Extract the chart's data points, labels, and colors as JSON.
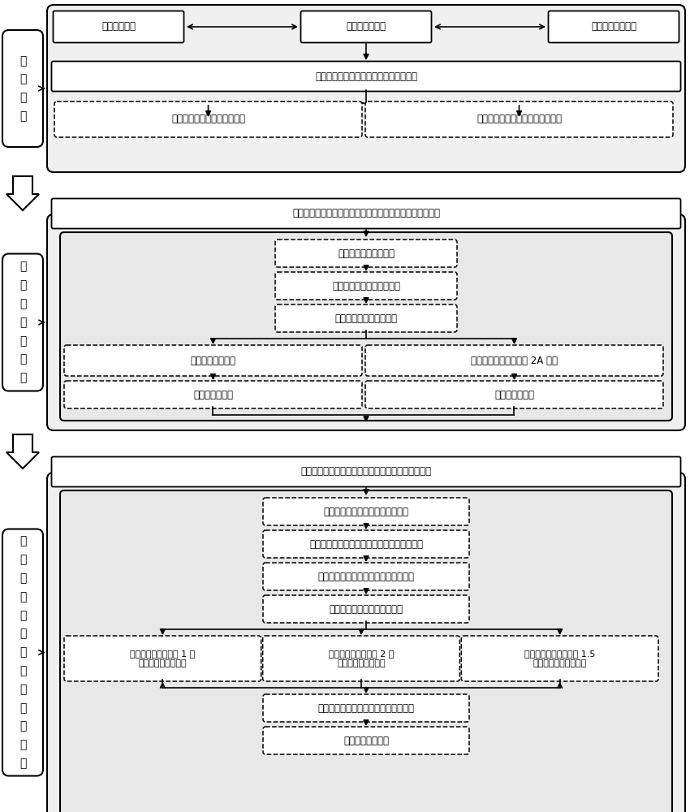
{
  "bg_color": "#ffffff",
  "text_color": "#000000",
  "section1_label": "制\n定\n方\n案",
  "section2_label": "特\n征\n污\n染\n物\n筛\n选",
  "section3_label": "目\n标\n特\n征\n污\n染\n物\n暴\n露\n区\n域\n划\n分",
  "top_boxes": [
    "基础资料收集",
    "预调查结果分析",
    "技术支持条件分析"
  ],
  "s1_main_box": "编制特征污染物筛选及暴露区域划分方案",
  "s1_dashed_left": "充实特征污染物筛选基础数据",
  "s1_dashed_right": "目标特征污染物人群暴露区域划分",
  "s2_main_box": "依据流域水体特征污染物筛选技术规定草案筛选特征污染物",
  "s2_d1": "第一阶段致癌等级筛选",
  "s2_d2": "第二阶段因子综合评分筛选",
  "s2_d3": "污染物因子综合评分计算",
  "s2_d4_left": "存在环境介质超标",
  "s2_d4_right": "检出率较高，致癌等级 2A 以上",
  "s2_d5_left": "核心特征污染物",
  "s2_d5_right": "扩展特征污染物",
  "s3_main_box": "依据特征污染物筛选结果研究人群暴露区域划分技术",
  "s3_d1": "确定暴露区域划分目标特征污染物",
  "s3_d2": "依据超标情况确定目标特征污染物受影响介质",
  "s3_d3": "目标特征污染物单一介质污染状况模拟",
  "s3_d4": "目标特征污染物污染成因分析",
  "s3_d5_left": "人为影响为主时，以 1 倍\n超标区域划分暴露区",
  "s3_d5_mid": "自然影响为主时，以 2 倍\n超标区域划分暴露区",
  "s3_d5_right": "其他情况，优先考虑以 1.5\n倍超标区域划分暴露区",
  "s3_d6": "目标特征污染物单一介质暴露区域划分",
  "s3_d7": "综合暴露区域划分"
}
